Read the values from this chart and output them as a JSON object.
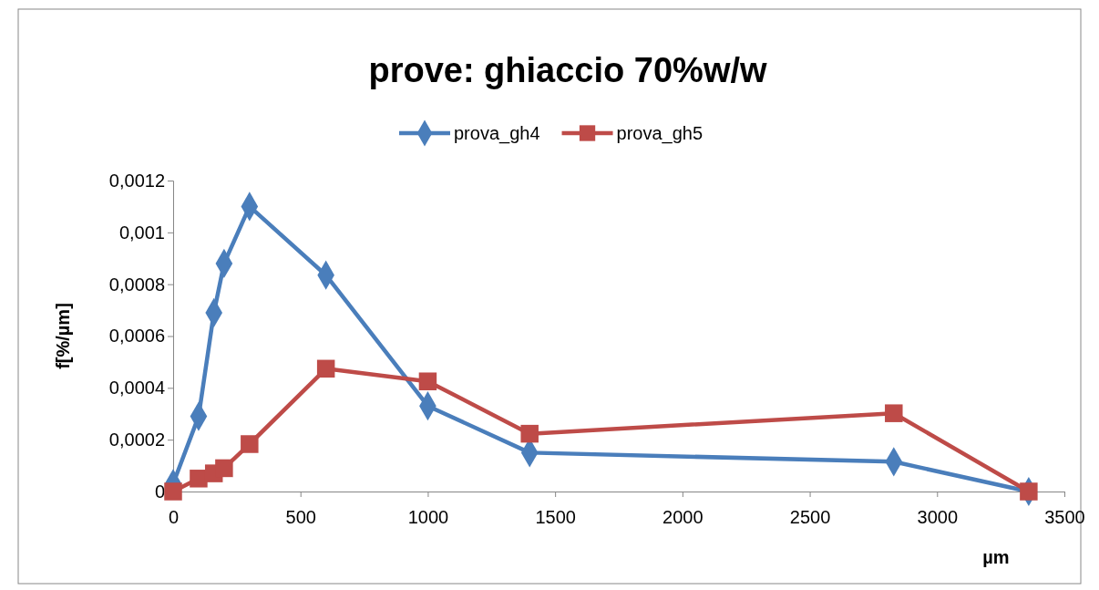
{
  "chart_data": {
    "type": "line",
    "title": "prove: ghiaccio 70%w/w",
    "xlabel": "µm",
    "ylabel": "f[%/µm]",
    "legend": "top",
    "grid": false,
    "line_style": "solid",
    "xlim": [
      0,
      3500
    ],
    "xticks": [
      0,
      500,
      1000,
      1500,
      2000,
      2500,
      3000,
      3500
    ],
    "ylim": [
      0,
      0.0012
    ],
    "yticks": [
      {
        "value": 0,
        "label": "0"
      },
      {
        "value": 0.0002,
        "label": "0,0002"
      },
      {
        "value": 0.0004,
        "label": "0,0004"
      },
      {
        "value": 0.0006,
        "label": "0,0006"
      },
      {
        "value": 0.0008,
        "label": "0,0008"
      },
      {
        "value": 0.001,
        "label": "0,001"
      },
      {
        "value": 0.0012,
        "label": "0,0012"
      }
    ],
    "series": [
      {
        "name": "prova_gh4",
        "color": "#4a7ebb",
        "marker": "diamond",
        "x": [
          0,
          100,
          160,
          200,
          300,
          600,
          1000,
          1400,
          2830,
          3360
        ],
        "values": [
          3e-05,
          0.00029,
          0.00069,
          0.00088,
          0.0011,
          0.000835,
          0.00033,
          0.00015,
          0.000115,
          0
        ]
      },
      {
        "name": "prova_gh5",
        "color": "#be4b48",
        "marker": "square",
        "x": [
          0,
          100,
          160,
          200,
          300,
          600,
          1000,
          1400,
          2830,
          3360
        ],
        "values": [
          0,
          5e-05,
          7e-05,
          9e-05,
          0.000183,
          0.000474,
          0.000425,
          0.000223,
          0.000302,
          0
        ]
      }
    ]
  }
}
